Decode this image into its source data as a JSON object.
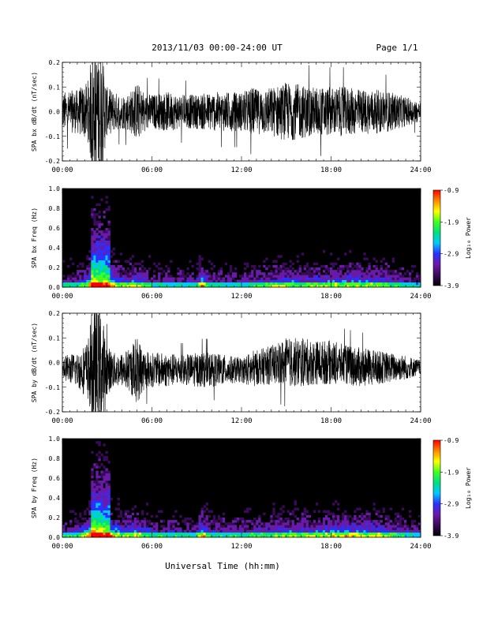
{
  "header": {
    "date_range": "2013/11/03  00:00-24:00 UT",
    "page": "Page 1/1"
  },
  "footer": {
    "xlabel": "Universal Time (hh:mm)"
  },
  "colors": {
    "trace": "#000000",
    "spectrogram_colormap": [
      "#000000",
      "#3a0a5a",
      "#6a1aa8",
      "#2a30ff",
      "#00c8ff",
      "#00e080",
      "#40ff20",
      "#ffff00",
      "#ff8800",
      "#ff0000"
    ]
  },
  "chart_data": [
    {
      "id": "bx-trace",
      "type": "line",
      "ylabel": "SPA bx dB/dt (nT/sec)",
      "xlim": [
        0,
        24
      ],
      "ylim": [
        -0.2,
        0.2
      ],
      "x_ticks": [
        "00:00",
        "06:00",
        "12:00",
        "18:00",
        "24:00"
      ],
      "y_ticks": [
        "0.2",
        "0.1",
        "0.0",
        "-0.1",
        "-0.2"
      ],
      "y_tick_values": [
        0.2,
        0.1,
        0.0,
        -0.1,
        -0.2
      ],
      "series": [
        {
          "x": [
            0,
            1,
            1.7,
            2,
            2.3,
            2.6,
            3,
            3.5,
            4,
            4.5,
            5,
            5.5,
            6,
            7,
            8,
            9,
            10,
            11,
            12,
            12.8,
            13,
            14,
            15,
            16,
            17,
            18,
            19,
            20,
            21,
            22,
            23,
            24
          ],
          "envelope": [
            0.08,
            0.09,
            0.12,
            0.25,
            0.25,
            0.25,
            0.1,
            0.08,
            0.07,
            0.08,
            0.12,
            0.08,
            0.07,
            0.08,
            0.07,
            0.07,
            0.08,
            0.08,
            0.08,
            0.1,
            0.09,
            0.1,
            0.12,
            0.11,
            0.1,
            0.1,
            0.1,
            0.09,
            0.09,
            0.08,
            0.06,
            0.04
          ],
          "offset": [
            0.0,
            0.0,
            0.0,
            0.0,
            0.0,
            0.0,
            0.0,
            0.0,
            0.0,
            0.0,
            0.0,
            0.0,
            0.0,
            0.0,
            0.0,
            0.0,
            0.0,
            0.0,
            0.0,
            0.0,
            0.0,
            0.0,
            0.0,
            0.0,
            0.0,
            0.0,
            0.0,
            0.0,
            0.0,
            0.0,
            0.0,
            0.0
          ]
        }
      ]
    },
    {
      "id": "bx-spectrogram",
      "type": "heatmap",
      "ylabel": "SPA bx Freq (Hz)",
      "colorbar_label": "Log₁₀ Power",
      "xlim": [
        0,
        24
      ],
      "ylim": [
        0.0,
        1.0
      ],
      "x_ticks": [
        "00:00",
        "06:00",
        "12:00",
        "18:00",
        "24:00"
      ],
      "y_ticks": [
        "1.0",
        "0.8",
        "0.6",
        "0.4",
        "0.2",
        "0.0"
      ],
      "y_tick_values": [
        1.0,
        0.8,
        0.6,
        0.4,
        0.2,
        0.0
      ],
      "colorbar_ticks": [
        "-0.9",
        "-1.9",
        "-2.9",
        "-3.9"
      ],
      "colorbar_range": [
        -3.9,
        -0.9
      ],
      "activity_x": [
        0,
        1,
        1.7,
        2,
        2.5,
        3,
        4,
        5,
        6,
        7,
        8,
        9,
        9.3,
        10,
        12,
        13,
        14,
        15,
        16,
        17,
        18,
        19,
        20,
        21,
        22,
        23,
        24
      ],
      "activity": [
        0.25,
        0.35,
        0.6,
        0.95,
        0.9,
        0.85,
        0.45,
        0.55,
        0.3,
        0.3,
        0.3,
        0.35,
        0.7,
        0.35,
        0.3,
        0.35,
        0.45,
        0.5,
        0.45,
        0.5,
        0.5,
        0.55,
        0.55,
        0.5,
        0.45,
        0.35,
        0.2
      ]
    },
    {
      "id": "by-trace",
      "type": "line",
      "ylabel": "SPA by dB/dt (nT/sec)",
      "xlim": [
        0,
        24
      ],
      "ylim": [
        -0.2,
        0.2
      ],
      "x_ticks": [
        "00:00",
        "06:00",
        "12:00",
        "18:00",
        "24:00"
      ],
      "y_ticks": [
        "0.2",
        "0.1",
        "0.0",
        "-0.1",
        "-0.2"
      ],
      "y_tick_values": [
        0.2,
        0.1,
        0.0,
        -0.1,
        -0.2
      ],
      "series": [
        {
          "x": [
            0,
            1,
            1.7,
            2,
            2.3,
            2.6,
            3,
            3.5,
            4,
            4.5,
            5,
            5.5,
            6,
            7,
            8,
            9,
            10,
            11,
            12,
            12.8,
            13,
            14,
            15,
            16,
            17,
            18,
            19,
            20,
            21,
            22,
            23,
            24
          ],
          "envelope": [
            0.05,
            0.07,
            0.12,
            0.25,
            0.25,
            0.25,
            0.1,
            0.07,
            0.07,
            0.09,
            0.14,
            0.08,
            0.07,
            0.07,
            0.06,
            0.07,
            0.07,
            0.06,
            0.05,
            0.08,
            0.07,
            0.08,
            0.1,
            0.1,
            0.09,
            0.09,
            0.08,
            0.08,
            0.07,
            0.06,
            0.05,
            0.03
          ],
          "offset": [
            -0.02,
            -0.03,
            -0.03,
            -0.03,
            -0.03,
            -0.03,
            -0.03,
            -0.03,
            -0.03,
            -0.03,
            -0.03,
            -0.03,
            -0.03,
            -0.03,
            -0.03,
            -0.03,
            -0.03,
            -0.03,
            -0.03,
            -0.03,
            -0.02,
            -0.01,
            0.0,
            0.0,
            0.0,
            0.0,
            -0.01,
            -0.02,
            -0.02,
            -0.02,
            -0.02,
            -0.02
          ]
        }
      ]
    },
    {
      "id": "by-spectrogram",
      "type": "heatmap",
      "ylabel": "SPA by Freq (Hz)",
      "colorbar_label": "Log₁₀ Power",
      "xlim": [
        0,
        24
      ],
      "ylim": [
        0.0,
        1.0
      ],
      "x_ticks": [
        "00:00",
        "06:00",
        "12:00",
        "18:00",
        "24:00"
      ],
      "y_ticks": [
        "1.0",
        "0.8",
        "0.6",
        "0.4",
        "0.2",
        "0.0"
      ],
      "y_tick_values": [
        1.0,
        0.8,
        0.6,
        0.4,
        0.2,
        0.0
      ],
      "colorbar_ticks": [
        "-0.9",
        "-1.9",
        "-2.9",
        "-3.9"
      ],
      "colorbar_range": [
        -3.9,
        -0.9
      ],
      "activity_x": [
        0,
        1,
        1.7,
        2,
        2.5,
        3,
        4,
        5,
        6,
        7,
        8,
        9,
        9.3,
        10,
        12,
        13,
        14,
        15,
        16,
        17,
        18,
        19,
        20,
        21,
        22,
        23,
        24
      ],
      "activity": [
        0.3,
        0.4,
        0.65,
        0.95,
        0.9,
        0.85,
        0.5,
        0.6,
        0.35,
        0.35,
        0.3,
        0.35,
        0.7,
        0.35,
        0.35,
        0.4,
        0.45,
        0.5,
        0.5,
        0.5,
        0.55,
        0.6,
        0.6,
        0.55,
        0.45,
        0.35,
        0.25
      ]
    }
  ]
}
